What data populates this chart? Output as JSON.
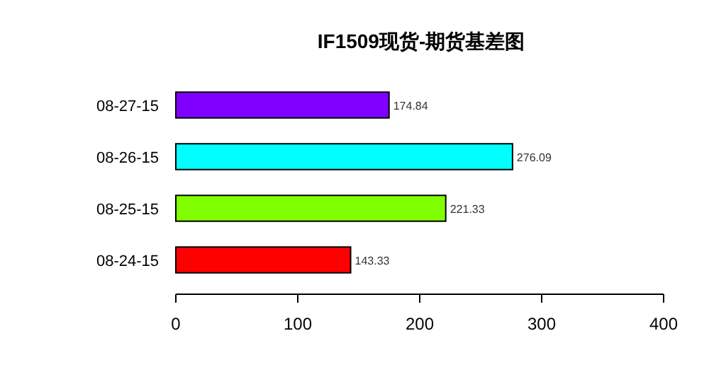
{
  "chart_data": {
    "type": "bar",
    "title": "IF1509现货-期货基差图",
    "orientation": "horizontal",
    "categories": [
      "08-27-15",
      "08-26-15",
      "08-25-15",
      "08-24-15"
    ],
    "values": [
      174.84,
      276.09,
      221.33,
      143.33
    ],
    "colors": [
      "#8000ff",
      "#00ffff",
      "#80ff00",
      "#ff0000"
    ],
    "data_labels": true,
    "xlim": [
      0,
      400
    ],
    "xticks": [
      0,
      100,
      200,
      300,
      400
    ],
    "grid": false
  }
}
